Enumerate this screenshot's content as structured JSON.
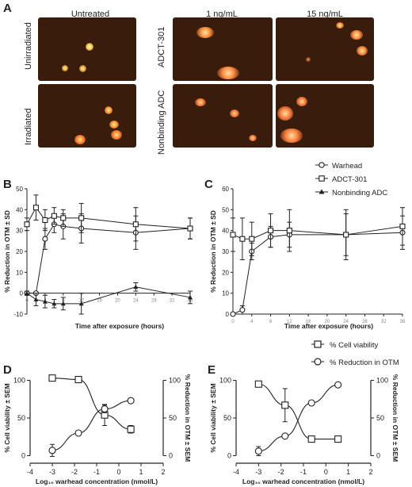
{
  "panels": {
    "A": {
      "letter": "A",
      "col_untreated": "Untreated",
      "col_1": "1 ng/mL",
      "col_15": "15 ng/mL",
      "row_unirradiated": "Unirradiated",
      "row_irradiated": "Irradiated",
      "row_adct": "ADCT-301",
      "row_nonbinding": "Nonbinding ADC",
      "colors": {
        "background": "#3a1c0c",
        "spot_core": "#fff4a0",
        "spot_glow": "#e07a20"
      }
    },
    "B": {
      "letter": "B"
    },
    "C": {
      "letter": "C"
    },
    "D": {
      "letter": "D"
    },
    "E": {
      "letter": "E"
    }
  },
  "legend_bc": {
    "warhead": "Warhead",
    "adct": "ADCT-301",
    "nonbinding": "Nonbinding ADC"
  },
  "legend_de": {
    "viability": "% Cell viability",
    "otm": "% Reduction in OTM"
  },
  "chart_data": [
    {
      "panel": "B",
      "type": "line",
      "xlabel": "Time after exposure (hours)",
      "ylabel": "% Reduction in OTM ± SD",
      "xlim": [
        0,
        36
      ],
      "ylim": [
        -10,
        50
      ],
      "xticks": [
        0,
        4,
        8,
        12,
        16,
        20,
        24,
        28,
        32,
        36
      ],
      "yticks": [
        -10,
        0,
        10,
        20,
        30,
        40,
        50
      ],
      "series": [
        {
          "name": "Warhead",
          "marker": "circle",
          "x": [
            0,
            2,
            4,
            6,
            8,
            12,
            24,
            36
          ],
          "y": [
            0,
            0,
            26,
            33,
            32,
            31,
            29,
            31
          ],
          "err": [
            0,
            0,
            5,
            4,
            6,
            7,
            8,
            5
          ]
        },
        {
          "name": "ADCT-301",
          "marker": "square",
          "x": [
            0,
            2,
            4,
            6,
            8,
            12,
            24,
            36
          ],
          "y": [
            33,
            41,
            35,
            37,
            36,
            36,
            33,
            31
          ],
          "err": [
            3,
            6,
            5,
            4,
            4,
            7,
            8,
            5
          ]
        },
        {
          "name": "Nonbinding ADC",
          "marker": "triangle",
          "x": [
            0,
            2,
            4,
            6,
            8,
            12,
            24,
            36
          ],
          "y": [
            0,
            -3,
            -4,
            -5,
            -5,
            -5,
            3,
            -2
          ],
          "err": [
            1,
            3,
            3,
            2,
            3,
            5,
            2,
            3
          ]
        }
      ]
    },
    {
      "panel": "C",
      "type": "line",
      "xlabel": "Time after exposure (hours)",
      "ylabel": "% Reduction in OTM ± SD",
      "xlim": [
        0,
        36
      ],
      "ylim": [
        0,
        60
      ],
      "xticks": [
        0,
        4,
        8,
        12,
        16,
        20,
        24,
        28,
        32,
        36
      ],
      "yticks": [
        0,
        10,
        20,
        30,
        40,
        50,
        60
      ],
      "series": [
        {
          "name": "Warhead",
          "marker": "circle",
          "x": [
            0,
            2,
            4,
            8,
            12,
            24,
            36
          ],
          "y": [
            0,
            2,
            30,
            37,
            38,
            38,
            39
          ],
          "err": [
            0,
            2,
            4,
            5,
            6,
            10,
            8
          ]
        },
        {
          "name": "ADCT-301",
          "marker": "square",
          "x": [
            0,
            2,
            4,
            8,
            12,
            24,
            36
          ],
          "y": [
            38,
            36,
            36,
            40,
            40,
            38,
            42
          ],
          "err": [
            8,
            10,
            8,
            8,
            10,
            12,
            9
          ]
        }
      ]
    },
    {
      "panel": "D",
      "type": "scatter",
      "xlabel": "Log₁₀ warhead concentration (nmol/L)",
      "ylabel": "% Cell viability ± SEM",
      "y2label": "% Reduction in OTM ± SEM",
      "xlim": [
        -4,
        2
      ],
      "ylim": [
        -10,
        110
      ],
      "xticks": [
        -4,
        -3,
        -2,
        -1,
        0,
        1,
        2
      ],
      "yticks": [
        0,
        50,
        100
      ],
      "series": [
        {
          "name": "% Cell viability",
          "marker": "square",
          "x": [
            -3,
            -1.82,
            -0.64,
            0.54
          ],
          "y": [
            103,
            101,
            54,
            35
          ],
          "err": [
            2,
            2,
            14,
            5
          ]
        },
        {
          "name": "% Reduction in OTM",
          "marker": "circle",
          "x": [
            -3,
            -1.82,
            -0.64,
            0.54
          ],
          "y": [
            7,
            30,
            62,
            73
          ],
          "err": [
            8,
            2,
            5,
            2
          ]
        }
      ]
    },
    {
      "panel": "E",
      "type": "scatter",
      "xlabel": "Log₁₀ warhead concentration (nmol/L)",
      "ylabel": "% Cell viability ± SEM",
      "y2label": "% Reduction in OTM ± SEM",
      "xlim": [
        -4,
        2
      ],
      "ylim": [
        -10,
        110
      ],
      "xticks": [
        -4,
        -3,
        -2,
        -1,
        0,
        1,
        2
      ],
      "yticks": [
        0,
        50,
        100
      ],
      "series": [
        {
          "name": "% Cell viability",
          "marker": "square",
          "x": [
            -3,
            -1.82,
            -0.64,
            0.54
          ],
          "y": [
            95,
            67,
            22,
            22
          ],
          "err": [
            2,
            22,
            2,
            2
          ]
        },
        {
          "name": "% Reduction in OTM",
          "marker": "circle",
          "x": [
            -3,
            -1.82,
            -0.64,
            0.54
          ],
          "y": [
            6,
            26,
            70,
            94
          ],
          "err": [
            6,
            2,
            2,
            2
          ]
        }
      ]
    }
  ]
}
